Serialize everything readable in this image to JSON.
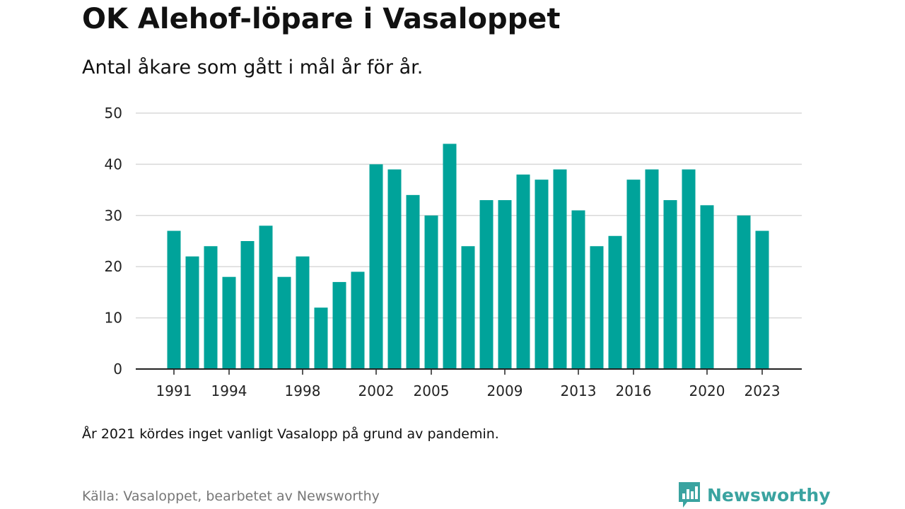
{
  "header": {
    "title": "OK Alehof-löpare i Vasaloppet",
    "subtitle": "Antal åkare som gått i mål år för år."
  },
  "footer": {
    "note": "År 2021 kördes inget vanligt Vasalopp på grund av pandemin.",
    "source": "Källa: Vasaloppet, bearbetet av Newsworthy",
    "logo_text": "Newsworthy"
  },
  "colors": {
    "bar": "#00a39a",
    "grid": "#d9d9d9",
    "axis": "#222222",
    "logo": "#3aa3a0"
  },
  "chart_data": {
    "type": "bar",
    "title": "OK Alehof-löpare i Vasaloppet",
    "subtitle": "Antal åkare som gått i mål år för år.",
    "xlabel": "",
    "ylabel": "",
    "ylim": [
      0,
      50
    ],
    "yticks": [
      0,
      10,
      20,
      30,
      40,
      50
    ],
    "xticks": [
      1991,
      1994,
      1998,
      2002,
      2005,
      2009,
      2013,
      2016,
      2020,
      2023
    ],
    "grid": true,
    "categories": [
      1991,
      1992,
      1993,
      1994,
      1995,
      1996,
      1997,
      1998,
      1999,
      2000,
      2001,
      2002,
      2003,
      2004,
      2005,
      2006,
      2007,
      2008,
      2009,
      2010,
      2011,
      2012,
      2013,
      2014,
      2015,
      2016,
      2017,
      2018,
      2019,
      2020,
      2021,
      2022,
      2023
    ],
    "values": [
      27,
      22,
      24,
      18,
      25,
      28,
      18,
      22,
      12,
      17,
      19,
      40,
      39,
      34,
      30,
      44,
      24,
      33,
      33,
      38,
      37,
      39,
      31,
      24,
      26,
      37,
      39,
      33,
      39,
      32,
      null,
      30,
      27
    ]
  }
}
